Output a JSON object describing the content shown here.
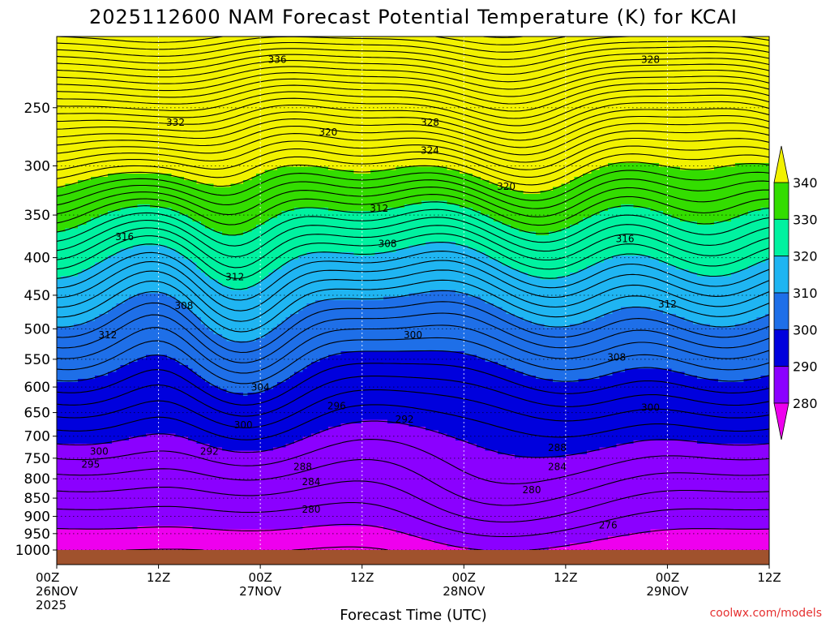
{
  "chart_data": {
    "type": "contour",
    "title": "2025112600 NAM Forecast Potential Temperature (K) for KCAI",
    "xlabel": "Forecast Time (UTC)",
    "credit": "coolwx.com/models",
    "y_ticks": [
      "250",
      "300",
      "350",
      "400",
      "450",
      "500",
      "550",
      "600",
      "650",
      "700",
      "750",
      "800",
      "850",
      "900",
      "950",
      "1000"
    ],
    "y_values": [
      250,
      300,
      350,
      400,
      450,
      500,
      550,
      600,
      650,
      700,
      750,
      800,
      850,
      900,
      950,
      1000
    ],
    "ylim": [
      200,
      1000
    ],
    "y_scale": "log-pressure",
    "xlim": [
      0,
      84
    ],
    "x_ticks": [
      {
        "hour": 0,
        "lines": [
          "00Z",
          "26NOV",
          "2025"
        ]
      },
      {
        "hour": 12,
        "lines": [
          "12Z"
        ]
      },
      {
        "hour": 24,
        "lines": [
          "00Z",
          "27NOV"
        ]
      },
      {
        "hour": 36,
        "lines": [
          "12Z"
        ]
      },
      {
        "hour": 48,
        "lines": [
          "00Z",
          "28NOV"
        ]
      },
      {
        "hour": 60,
        "lines": [
          "12Z"
        ]
      },
      {
        "hour": 72,
        "lines": [
          "00Z",
          "29NOV"
        ]
      },
      {
        "hour": 84,
        "lines": [
          "12Z"
        ]
      }
    ],
    "grid": true,
    "contour_interval": 2,
    "colorbar": {
      "ticks": [
        "340",
        "330",
        "320",
        "310",
        "300",
        "290",
        "280"
      ],
      "bands": [
        {
          "from": 270,
          "to": 280,
          "color": "#ee00ee"
        },
        {
          "from": 280,
          "to": 290,
          "color": "#8b00ff"
        },
        {
          "from": 290,
          "to": 300,
          "color": "#0000dd"
        },
        {
          "from": 300,
          "to": 310,
          "color": "#1e6fe8"
        },
        {
          "from": 310,
          "to": 320,
          "color": "#1fb5f2"
        },
        {
          "from": 320,
          "to": 330,
          "color": "#00f2a0"
        },
        {
          "from": 330,
          "to": 340,
          "color": "#33dd00"
        },
        {
          "from": 340,
          "to": 350,
          "color": "#f2f200"
        }
      ]
    },
    "ground_color": "#a0522d",
    "contour_labels": [
      {
        "text": "336",
        "hour": 26,
        "p": 215
      },
      {
        "text": "328",
        "hour": 70,
        "p": 215
      },
      {
        "text": "332",
        "hour": 14,
        "p": 262
      },
      {
        "text": "328",
        "hour": 44,
        "p": 262
      },
      {
        "text": "320",
        "hour": 32,
        "p": 270
      },
      {
        "text": "324",
        "hour": 44,
        "p": 286
      },
      {
        "text": "320",
        "hour": 53,
        "p": 320
      },
      {
        "text": "312",
        "hour": 38,
        "p": 343
      },
      {
        "text": "316",
        "hour": 8,
        "p": 375
      },
      {
        "text": "308",
        "hour": 39,
        "p": 383
      },
      {
        "text": "316",
        "hour": 67,
        "p": 377
      },
      {
        "text": "312",
        "hour": 21,
        "p": 425
      },
      {
        "text": "308",
        "hour": 15,
        "p": 465
      },
      {
        "text": "312",
        "hour": 72,
        "p": 463
      },
      {
        "text": "312",
        "hour": 6,
        "p": 510
      },
      {
        "text": "300",
        "hour": 42,
        "p": 510
      },
      {
        "text": "308",
        "hour": 66,
        "p": 547
      },
      {
        "text": "304",
        "hour": 24,
        "p": 601
      },
      {
        "text": "296",
        "hour": 33,
        "p": 637
      },
      {
        "text": "292",
        "hour": 41,
        "p": 664
      },
      {
        "text": "300",
        "hour": 70,
        "p": 640
      },
      {
        "text": "300",
        "hour": 22,
        "p": 676
      },
      {
        "text": "292",
        "hour": 18,
        "p": 734
      },
      {
        "text": "300",
        "hour": 5,
        "p": 734
      },
      {
        "text": "288",
        "hour": 59,
        "p": 726
      },
      {
        "text": "288",
        "hour": 29,
        "p": 771
      },
      {
        "text": "284",
        "hour": 59,
        "p": 771
      },
      {
        "text": "295",
        "hour": 4,
        "p": 765
      },
      {
        "text": "284",
        "hour": 30,
        "p": 808
      },
      {
        "text": "280",
        "hour": 56,
        "p": 828
      },
      {
        "text": "280",
        "hour": 30,
        "p": 881
      },
      {
        "text": "276",
        "hour": 65,
        "p": 925
      }
    ]
  }
}
